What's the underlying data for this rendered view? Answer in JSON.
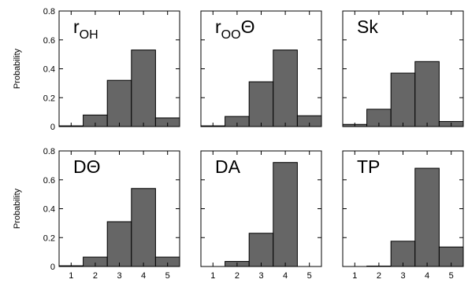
{
  "chart_data": [
    {
      "type": "bar",
      "title": "r",
      "title_sub": "OH",
      "title_suffix": "",
      "ylabel": "Probability",
      "categories": [
        "1",
        "2",
        "3",
        "4",
        "5"
      ],
      "values": [
        0.005,
        0.08,
        0.32,
        0.53,
        0.06
      ],
      "ylim": [
        0,
        0.8
      ],
      "yticks": [
        "0",
        "0.2",
        "0.4",
        "0.6",
        "0.8"
      ],
      "xticks_visible": false,
      "bar_color": "#666666",
      "grid": false
    },
    {
      "type": "bar",
      "title": "r",
      "title_sub": "OO",
      "title_suffix": "Θ",
      "ylabel": "",
      "categories": [
        "1",
        "2",
        "3",
        "4",
        "5"
      ],
      "values": [
        0.005,
        0.07,
        0.31,
        0.53,
        0.075
      ],
      "ylim": [
        0,
        0.8
      ],
      "yticks": [],
      "xticks_visible": false,
      "bar_color": "#666666",
      "grid": false
    },
    {
      "type": "bar",
      "title": "Sk",
      "title_sub": "",
      "title_suffix": "",
      "ylabel": "",
      "categories": [
        "1",
        "2",
        "3",
        "4",
        "5"
      ],
      "values": [
        0.015,
        0.12,
        0.37,
        0.45,
        0.035
      ],
      "ylim": [
        0,
        0.8
      ],
      "yticks": [],
      "xticks_visible": false,
      "bar_color": "#666666",
      "grid": false
    },
    {
      "type": "bar",
      "title": "DΘ",
      "title_sub": "",
      "title_suffix": "",
      "ylabel": "Probability",
      "categories": [
        "1",
        "2",
        "3",
        "4",
        "5"
      ],
      "values": [
        0.005,
        0.065,
        0.31,
        0.54,
        0.065
      ],
      "ylim": [
        0,
        0.8
      ],
      "yticks": [
        "0",
        "0.2",
        "0.4",
        "0.6",
        "0.8"
      ],
      "xticks_visible": true,
      "bar_color": "#666666",
      "grid": false
    },
    {
      "type": "bar",
      "title": "DA",
      "title_sub": "",
      "title_suffix": "",
      "ylabel": "",
      "categories": [
        "1",
        "2",
        "3",
        "4",
        "5"
      ],
      "values": [
        0.0,
        0.035,
        0.23,
        0.72,
        0.0
      ],
      "ylim": [
        0,
        0.8
      ],
      "yticks": [],
      "xticks_visible": true,
      "bar_color": "#666666",
      "grid": false
    },
    {
      "type": "bar",
      "title": "TP",
      "title_sub": "",
      "title_suffix": "",
      "ylabel": "",
      "categories": [
        "1",
        "2",
        "3",
        "4",
        "5"
      ],
      "values": [
        0.0,
        0.003,
        0.175,
        0.68,
        0.135
      ],
      "ylim": [
        0,
        0.8
      ],
      "yticks": [],
      "xticks_visible": true,
      "bar_color": "#666666",
      "grid": false
    }
  ]
}
